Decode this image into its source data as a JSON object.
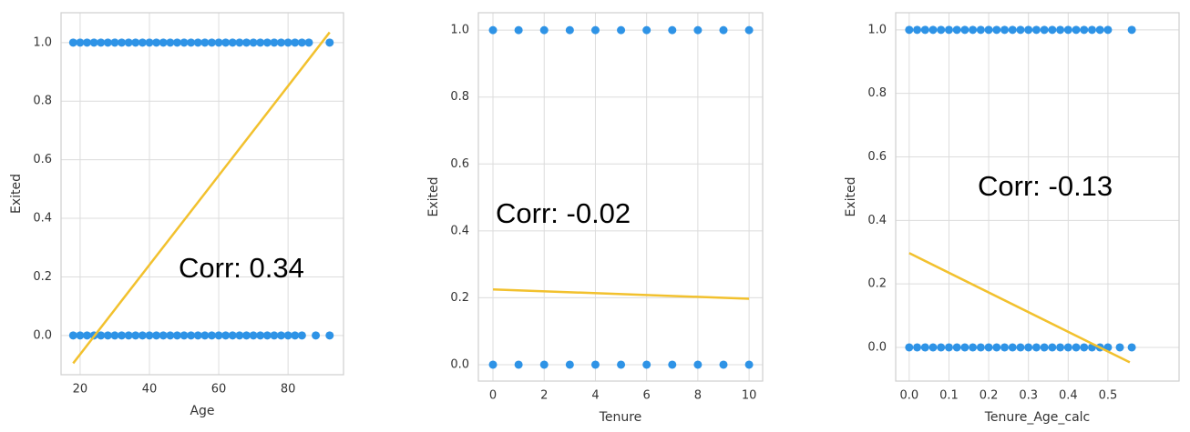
{
  "chart_data": [
    {
      "type": "scatter",
      "xlabel": "Age",
      "ylabel": "Exited",
      "annotation": "Corr: 0.34",
      "grid": true,
      "point_color": "#2e93e6",
      "line_color": "#f2c12e",
      "x": [
        18,
        20,
        22,
        24,
        26,
        28,
        30,
        32,
        34,
        36,
        38,
        40,
        42,
        44,
        46,
        48,
        50,
        52,
        54,
        56,
        58,
        60,
        62,
        64,
        66,
        68,
        70,
        72,
        74,
        76,
        78,
        80,
        82,
        84,
        86,
        92,
        18,
        20,
        22,
        24,
        26,
        28,
        30,
        32,
        34,
        36,
        38,
        40,
        42,
        44,
        46,
        48,
        50,
        52,
        54,
        56,
        58,
        60,
        62,
        64,
        66,
        68,
        70,
        72,
        74,
        76,
        78,
        80,
        82,
        84,
        88,
        92
      ],
      "y": [
        1,
        1,
        1,
        1,
        1,
        1,
        1,
        1,
        1,
        1,
        1,
        1,
        1,
        1,
        1,
        1,
        1,
        1,
        1,
        1,
        1,
        1,
        1,
        1,
        1,
        1,
        1,
        1,
        1,
        1,
        1,
        1,
        1,
        1,
        1,
        1,
        0,
        0,
        0,
        0,
        0,
        0,
        0,
        0,
        0,
        0,
        0,
        0,
        0,
        0,
        0,
        0,
        0,
        0,
        0,
        0,
        0,
        0,
        0,
        0,
        0,
        0,
        0,
        0,
        0,
        0,
        0,
        0,
        0,
        0,
        0,
        0
      ],
      "fit": {
        "x": [
          18,
          92
        ],
        "y": [
          -0.095,
          1.035
        ]
      },
      "xlim": [
        14.5,
        96
      ],
      "xticks": [
        20,
        40,
        60,
        80
      ],
      "ylim": [
        -0.134,
        1.102
      ],
      "yticks": [
        {
          "value": 0,
          "label": "0.0"
        },
        {
          "value": 0.2,
          "label": "0.2"
        },
        {
          "value": 0.4,
          "label": "0.4"
        },
        {
          "value": 0.6,
          "label": "0.6"
        },
        {
          "value": 0.8,
          "label": "0.8"
        },
        {
          "value": 1,
          "label": "1.0"
        }
      ]
    },
    {
      "type": "scatter",
      "xlabel": "Tenure",
      "ylabel": "Exited",
      "annotation": "Corr: -0.02",
      "grid": true,
      "point_color": "#2e93e6",
      "line_color": "#f2c12e",
      "x": [
        0,
        1,
        2,
        3,
        4,
        5,
        6,
        7,
        8,
        9,
        10,
        0,
        1,
        2,
        3,
        4,
        5,
        6,
        7,
        8,
        9,
        10
      ],
      "y": [
        1,
        1,
        1,
        1,
        1,
        1,
        1,
        1,
        1,
        1,
        1,
        0,
        0,
        0,
        0,
        0,
        0,
        0,
        0,
        0,
        0,
        0
      ],
      "fit": {
        "x": [
          0,
          10
        ],
        "y": [
          0.225,
          0.197
        ]
      },
      "xlim": [
        -0.57,
        10.53
      ],
      "xticks": [
        0,
        2,
        4,
        6,
        8,
        10
      ],
      "ylim": [
        -0.049,
        1.052
      ],
      "yticks": [
        {
          "value": 0,
          "label": "0.0"
        },
        {
          "value": 0.2,
          "label": "0.2"
        },
        {
          "value": 0.4,
          "label": "0.4"
        },
        {
          "value": 0.6,
          "label": "0.6"
        },
        {
          "value": 0.8,
          "label": "0.8"
        },
        {
          "value": 1,
          "label": "1.0"
        }
      ]
    },
    {
      "type": "scatter",
      "xlabel": "Tenure_Age_calc",
      "ylabel": "Exited",
      "annotation": "Corr: -0.13",
      "grid": true,
      "point_color": "#2e93e6",
      "line_color": "#f2c12e",
      "x": [
        0,
        0.02,
        0.04,
        0.06,
        0.08,
        0.1,
        0.12,
        0.14,
        0.16,
        0.18,
        0.2,
        0.22,
        0.24,
        0.26,
        0.28,
        0.3,
        0.32,
        0.34,
        0.36,
        0.38,
        0.4,
        0.42,
        0.44,
        0.46,
        0.48,
        0.5,
        0.56,
        0,
        0.02,
        0.04,
        0.06,
        0.08,
        0.1,
        0.12,
        0.14,
        0.16,
        0.18,
        0.2,
        0.22,
        0.24,
        0.26,
        0.28,
        0.3,
        0.32,
        0.34,
        0.36,
        0.38,
        0.4,
        0.42,
        0.44,
        0.46,
        0.48,
        0.5,
        0.53,
        0.56
      ],
      "y": [
        1,
        1,
        1,
        1,
        1,
        1,
        1,
        1,
        1,
        1,
        1,
        1,
        1,
        1,
        1,
        1,
        1,
        1,
        1,
        1,
        1,
        1,
        1,
        1,
        1,
        1,
        1,
        0,
        0,
        0,
        0,
        0,
        0,
        0,
        0,
        0,
        0,
        0,
        0,
        0,
        0,
        0,
        0,
        0,
        0,
        0,
        0,
        0,
        0,
        0,
        0,
        0,
        0,
        0,
        0
      ],
      "fit": {
        "x": [
          0,
          0.555
        ],
        "y": [
          0.297,
          -0.047
        ]
      },
      "xlim": [
        -0.034,
        0.679
      ],
      "xticks": [
        {
          "value": 0,
          "label": "0.0"
        },
        {
          "value": 0.1,
          "label": "0.1"
        },
        {
          "value": 0.2,
          "label": "0.2"
        },
        {
          "value": 0.3,
          "label": "0.3"
        },
        {
          "value": 0.4,
          "label": "0.4"
        },
        {
          "value": 0.5,
          "label": "0.5"
        }
      ],
      "ylim": [
        -0.106,
        1.054
      ],
      "yticks": [
        {
          "value": 0,
          "label": "0.0"
        },
        {
          "value": 0.2,
          "label": "0.2"
        },
        {
          "value": 0.4,
          "label": "0.4"
        },
        {
          "value": 0.6,
          "label": "0.6"
        },
        {
          "value": 0.8,
          "label": "0.8"
        },
        {
          "value": 1,
          "label": "1.0"
        }
      ]
    }
  ]
}
